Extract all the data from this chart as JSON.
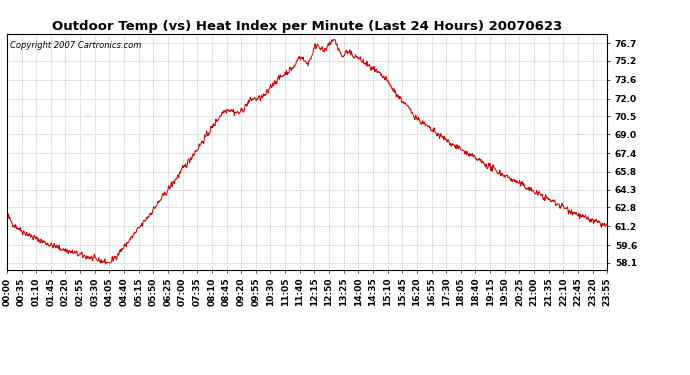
{
  "title": "Outdoor Temp (vs) Heat Index per Minute (Last 24 Hours) 20070623",
  "copyright": "Copyright 2007 Cartronics.com",
  "line_color": "#cc0000",
  "background_color": "#ffffff",
  "grid_color": "#aaaaaa",
  "yticks": [
    58.1,
    59.6,
    61.2,
    62.8,
    64.3,
    65.8,
    67.4,
    69.0,
    70.5,
    72.0,
    73.6,
    75.2,
    76.7
  ],
  "ylim": [
    57.5,
    77.5
  ],
  "xtick_labels": [
    "00:00",
    "00:35",
    "01:10",
    "01:45",
    "02:20",
    "02:55",
    "03:30",
    "04:05",
    "04:40",
    "05:15",
    "05:50",
    "06:25",
    "07:00",
    "07:35",
    "08:10",
    "08:45",
    "09:20",
    "09:55",
    "10:30",
    "11:05",
    "11:40",
    "12:15",
    "12:50",
    "13:25",
    "14:00",
    "14:35",
    "15:10",
    "15:45",
    "16:20",
    "16:55",
    "17:30",
    "18:05",
    "18:40",
    "19:15",
    "19:50",
    "20:25",
    "21:00",
    "21:35",
    "22:10",
    "22:45",
    "23:20",
    "23:55"
  ],
  "title_fontsize": 9.5,
  "tick_fontsize": 6.5,
  "copyright_fontsize": 6
}
